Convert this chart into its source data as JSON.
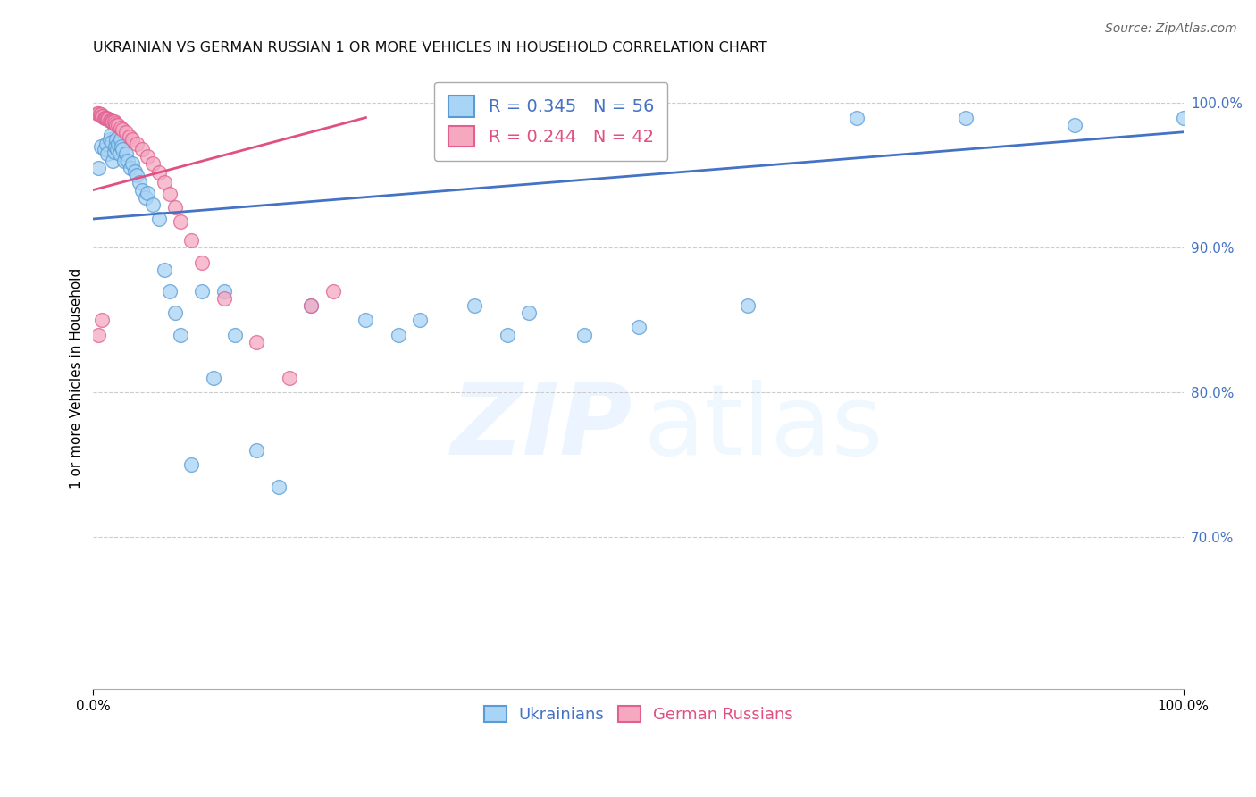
{
  "title": "UKRAINIAN VS GERMAN RUSSIAN 1 OR MORE VEHICLES IN HOUSEHOLD CORRELATION CHART",
  "source": "Source: ZipAtlas.com",
  "ylabel": "1 or more Vehicles in Household",
  "xmin": 0.0,
  "xmax": 1.0,
  "ymin": 0.595,
  "ymax": 1.025,
  "yticks": [
    0.7,
    0.8,
    0.9,
    1.0
  ],
  "ytick_labels": [
    "70.0%",
    "80.0%",
    "90.0%",
    "100.0%"
  ],
  "legend_labels": [
    "Ukrainians",
    "German Russians"
  ],
  "blue_R": 0.345,
  "blue_N": 56,
  "pink_R": 0.244,
  "pink_N": 42,
  "blue_color": "#a8d4f5",
  "pink_color": "#f5a8c0",
  "blue_edge_color": "#5b9bd5",
  "pink_edge_color": "#e06090",
  "blue_line_color": "#4472c4",
  "pink_line_color": "#e05080",
  "blue_x": [
    0.005,
    0.007,
    0.01,
    0.012,
    0.013,
    0.015,
    0.016,
    0.017,
    0.018,
    0.019,
    0.02,
    0.021,
    0.022,
    0.023,
    0.024,
    0.025,
    0.026,
    0.027,
    0.028,
    0.03,
    0.032,
    0.034,
    0.036,
    0.038,
    0.04,
    0.042,
    0.045,
    0.048,
    0.05,
    0.055,
    0.06,
    0.065,
    0.07,
    0.075,
    0.08,
    0.09,
    0.1,
    0.11,
    0.12,
    0.13,
    0.15,
    0.17,
    0.2,
    0.25,
    0.28,
    0.3,
    0.35,
    0.38,
    0.4,
    0.45,
    0.5,
    0.6,
    0.7,
    0.8,
    0.9,
    1.0
  ],
  "blue_y": [
    0.955,
    0.97,
    0.968,
    0.972,
    0.965,
    0.975,
    0.978,
    0.973,
    0.96,
    0.966,
    0.97,
    0.975,
    0.968,
    0.972,
    0.965,
    0.975,
    0.97,
    0.968,
    0.96,
    0.965,
    0.96,
    0.955,
    0.958,
    0.953,
    0.95,
    0.945,
    0.94,
    0.935,
    0.938,
    0.93,
    0.92,
    0.885,
    0.87,
    0.855,
    0.84,
    0.75,
    0.87,
    0.81,
    0.87,
    0.84,
    0.76,
    0.735,
    0.86,
    0.85,
    0.84,
    0.85,
    0.86,
    0.84,
    0.855,
    0.84,
    0.845,
    0.86,
    0.99,
    0.99,
    0.985,
    0.99
  ],
  "pink_x": [
    0.004,
    0.005,
    0.006,
    0.007,
    0.008,
    0.009,
    0.01,
    0.011,
    0.012,
    0.013,
    0.014,
    0.015,
    0.016,
    0.017,
    0.018,
    0.019,
    0.02,
    0.021,
    0.023,
    0.025,
    0.027,
    0.03,
    0.033,
    0.036,
    0.04,
    0.045,
    0.05,
    0.055,
    0.06,
    0.065,
    0.07,
    0.075,
    0.08,
    0.09,
    0.1,
    0.12,
    0.15,
    0.18,
    0.2,
    0.22,
    0.005,
    0.008
  ],
  "pink_y": [
    0.993,
    0.993,
    0.992,
    0.992,
    0.991,
    0.991,
    0.99,
    0.99,
    0.99,
    0.989,
    0.989,
    0.988,
    0.988,
    0.987,
    0.987,
    0.987,
    0.986,
    0.985,
    0.985,
    0.983,
    0.982,
    0.98,
    0.977,
    0.975,
    0.972,
    0.968,
    0.963,
    0.958,
    0.952,
    0.945,
    0.937,
    0.928,
    0.918,
    0.905,
    0.89,
    0.865,
    0.835,
    0.81,
    0.86,
    0.87,
    0.84,
    0.85
  ],
  "blue_trendline_x": [
    0.0,
    1.0
  ],
  "blue_trendline_y_start": 0.92,
  "blue_trendline_y_end": 0.98,
  "pink_trendline_x": [
    0.0,
    0.25
  ],
  "pink_trendline_y_start": 0.94,
  "pink_trendline_y_end": 0.99
}
